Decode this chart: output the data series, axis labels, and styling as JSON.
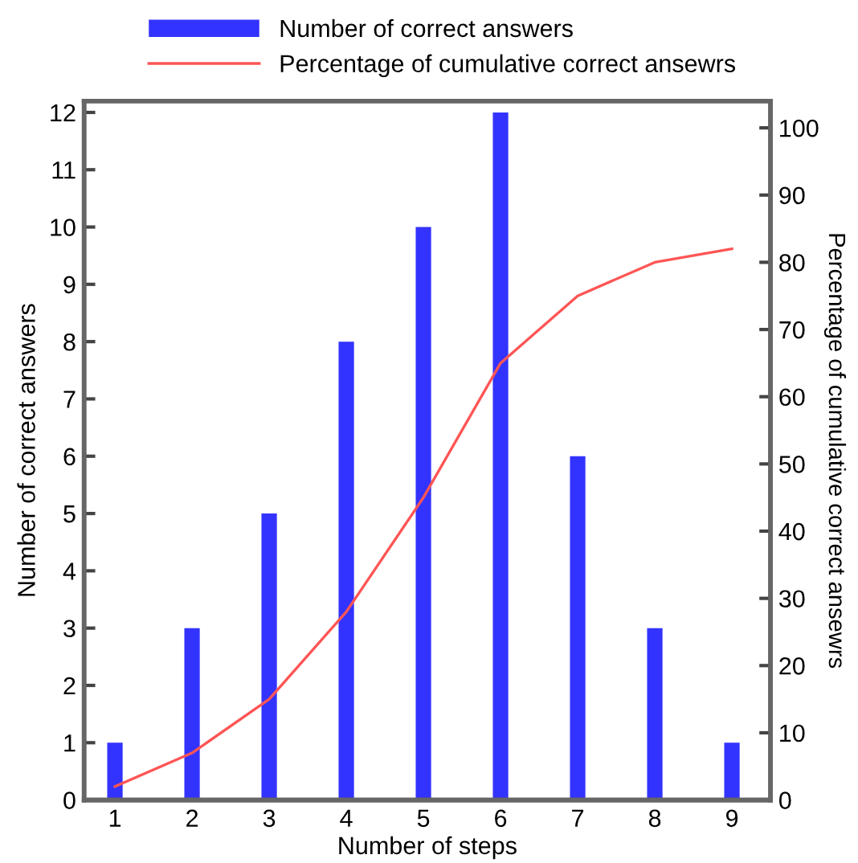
{
  "chart_data": {
    "type": "bar",
    "xlabel": "Number of steps",
    "ylabel": "Number of correct answers",
    "y2label": "Percentage of cumulative correct ansewrs",
    "x": [
      1,
      2,
      3,
      4,
      5,
      6,
      7,
      8,
      9
    ],
    "xlim": [
      0.6,
      9.5
    ],
    "xticks": [
      1,
      2,
      3,
      4,
      5,
      6,
      7,
      8,
      9
    ],
    "ylim": [
      0,
      12.2
    ],
    "yticks": [
      0,
      1,
      2,
      3,
      4,
      5,
      6,
      7,
      8,
      9,
      10,
      11,
      12
    ],
    "y2lim": [
      0,
      104
    ],
    "y2ticks": [
      0,
      10,
      20,
      30,
      40,
      50,
      60,
      70,
      80,
      90,
      100
    ],
    "series": [
      {
        "name": "Number of correct answers",
        "color": "#3333ff",
        "values": [
          1,
          3,
          5,
          8,
          10,
          12,
          6,
          3,
          1
        ]
      },
      {
        "name": "Percentage of cumulative correct ansewrs",
        "type": "line",
        "axis": "y2",
        "color": "#ff5555",
        "values": [
          2,
          7,
          15,
          28,
          45,
          65,
          75,
          80,
          82
        ]
      }
    ],
    "legend": "top left",
    "grid": false
  }
}
